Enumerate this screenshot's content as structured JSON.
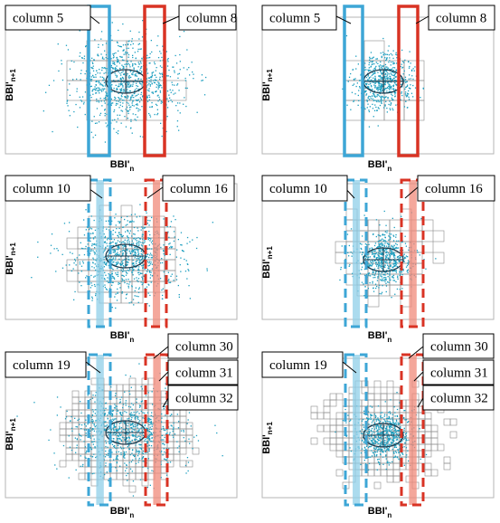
{
  "axis": {
    "x_main": "BBI'",
    "x_sub": "n",
    "y_main": "BBI'",
    "y_sub": "n+1"
  },
  "colors": {
    "blue": "#3da6d6",
    "blue_fill": "#8fcfe8",
    "red": "#d93324",
    "red_fill": "#f08a7a",
    "dot": "#1a9dbf",
    "grid": "#8c8c8c",
    "frame": "#b5b5b5"
  },
  "panels": [
    {
      "row": 1,
      "side": "left",
      "style": "solid",
      "density": "coarse",
      "points": "dense",
      "labels": [
        {
          "text": "column 5",
          "color": "blue"
        },
        {
          "text": "column 8",
          "color": "red"
        }
      ]
    },
    {
      "row": 1,
      "side": "right",
      "style": "solid",
      "density": "coarse",
      "points": "sparse",
      "labels": [
        {
          "text": "column 5",
          "color": "blue"
        },
        {
          "text": "column 8",
          "color": "red"
        }
      ]
    },
    {
      "row": 2,
      "side": "left",
      "style": "dashed",
      "density": "medium",
      "points": "dense",
      "labels": [
        {
          "text": "column 10",
          "color": "blue"
        },
        {
          "text": "column 16",
          "color": "red"
        }
      ]
    },
    {
      "row": 2,
      "side": "right",
      "style": "dashed",
      "density": "medium",
      "points": "sparse",
      "labels": [
        {
          "text": "column 10",
          "color": "blue"
        },
        {
          "text": "column 16",
          "color": "red"
        }
      ]
    },
    {
      "row": 3,
      "side": "left",
      "style": "dashed",
      "density": "fine",
      "points": "dense",
      "labels": [
        {
          "text": "column 19",
          "color": "blue"
        },
        {
          "text": "column 30",
          "color": "red"
        },
        {
          "text": "column 31",
          "color": "red"
        },
        {
          "text": "column 32",
          "color": "red"
        }
      ]
    },
    {
      "row": 3,
      "side": "right",
      "style": "dashed",
      "density": "fine",
      "points": "sparse",
      "labels": [
        {
          "text": "column 19",
          "color": "blue"
        },
        {
          "text": "column 30",
          "color": "red"
        },
        {
          "text": "column 31",
          "color": "red"
        },
        {
          "text": "column 32",
          "color": "red"
        }
      ]
    }
  ]
}
